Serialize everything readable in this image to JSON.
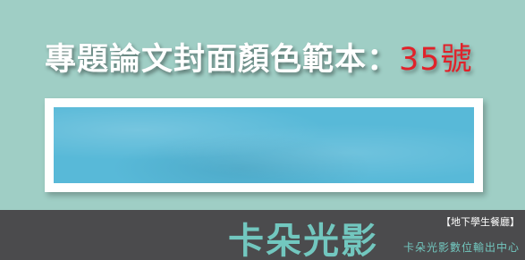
{
  "header": {
    "title": "專題論文封面顏色範本：",
    "number": "35號"
  },
  "footer": {
    "logo": "卡朵光影",
    "tag": "【地下學生餐廳】",
    "company": "卡朵光影數位輸出中心"
  }
}
